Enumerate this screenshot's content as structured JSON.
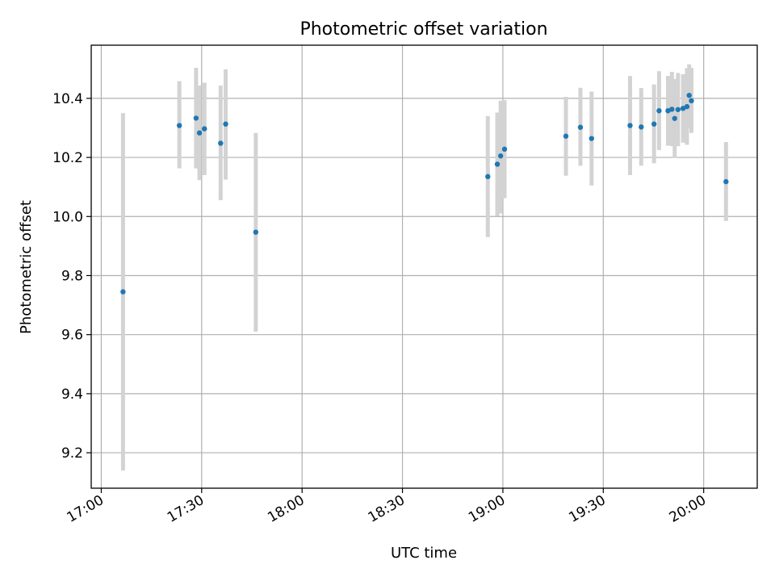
{
  "chart_data": {
    "type": "scatter",
    "title": "Photometric offset variation",
    "xlabel": "UTC time",
    "ylabel": "Photometric offset",
    "x_axis": "time",
    "xlim": [
      "16:57",
      "20:16"
    ],
    "ylim": [
      9.08,
      10.58
    ],
    "xticks": [
      "17:00",
      "17:30",
      "18:00",
      "18:30",
      "19:00",
      "19:30",
      "20:00"
    ],
    "yticks": [
      9.2,
      9.4,
      9.6,
      9.8,
      10.0,
      10.2,
      10.4
    ],
    "grid": true,
    "error_bars": true,
    "series": [
      {
        "color": "#1f77b4",
        "error_color": "#d3d3d3",
        "points": [
          {
            "t": "17:06:30",
            "y": 9.745,
            "lo": 9.14,
            "hi": 10.35
          },
          {
            "t": "17:23:20",
            "y": 10.308,
            "lo": 10.163,
            "hi": 10.458
          },
          {
            "t": "17:28:20",
            "y": 10.333,
            "lo": 10.163,
            "hi": 10.503
          },
          {
            "t": "17:29:20",
            "y": 10.283,
            "lo": 10.123,
            "hi": 10.443
          },
          {
            "t": "17:30:50",
            "y": 10.297,
            "lo": 10.14,
            "hi": 10.453
          },
          {
            "t": "17:35:40",
            "y": 10.248,
            "lo": 10.055,
            "hi": 10.443
          },
          {
            "t": "17:37:10",
            "y": 10.313,
            "lo": 10.125,
            "hi": 10.498
          },
          {
            "t": "17:46:10",
            "y": 9.947,
            "lo": 9.61,
            "hi": 10.283
          },
          {
            "t": "18:55:30",
            "y": 10.135,
            "lo": 9.93,
            "hi": 10.34
          },
          {
            "t": "18:58:20",
            "y": 10.177,
            "lo": 10.002,
            "hi": 10.352
          },
          {
            "t": "18:59:20",
            "y": 10.205,
            "lo": 10.01,
            "hi": 10.392
          },
          {
            "t": "19:00:30",
            "y": 10.228,
            "lo": 10.062,
            "hi": 10.394
          },
          {
            "t": "19:18:50",
            "y": 10.272,
            "lo": 10.138,
            "hi": 10.405
          },
          {
            "t": "19:23:10",
            "y": 10.302,
            "lo": 10.172,
            "hi": 10.436
          },
          {
            "t": "19:26:30",
            "y": 10.264,
            "lo": 10.105,
            "hi": 10.423
          },
          {
            "t": "19:38:00",
            "y": 10.308,
            "lo": 10.14,
            "hi": 10.476
          },
          {
            "t": "19:41:20",
            "y": 10.303,
            "lo": 10.172,
            "hi": 10.435
          },
          {
            "t": "19:45:10",
            "y": 10.313,
            "lo": 10.18,
            "hi": 10.447
          },
          {
            "t": "19:46:40",
            "y": 10.358,
            "lo": 10.225,
            "hi": 10.492
          },
          {
            "t": "19:49:20",
            "y": 10.358,
            "lo": 10.24,
            "hi": 10.476
          },
          {
            "t": "19:50:30",
            "y": 10.363,
            "lo": 10.238,
            "hi": 10.49
          },
          {
            "t": "19:51:20",
            "y": 10.332,
            "lo": 10.198,
            "hi": 10.466
          },
          {
            "t": "19:52:20",
            "y": 10.362,
            "lo": 10.238,
            "hi": 10.486
          },
          {
            "t": "19:53:50",
            "y": 10.366,
            "lo": 10.25,
            "hi": 10.482
          },
          {
            "t": "19:55:00",
            "y": 10.372,
            "lo": 10.243,
            "hi": 10.502
          },
          {
            "t": "19:55:40",
            "y": 10.41,
            "lo": 10.3,
            "hi": 10.515
          },
          {
            "t": "19:56:20",
            "y": 10.392,
            "lo": 10.283,
            "hi": 10.503
          },
          {
            "t": "20:06:40",
            "y": 10.118,
            "lo": 9.985,
            "hi": 10.252
          }
        ]
      }
    ]
  }
}
